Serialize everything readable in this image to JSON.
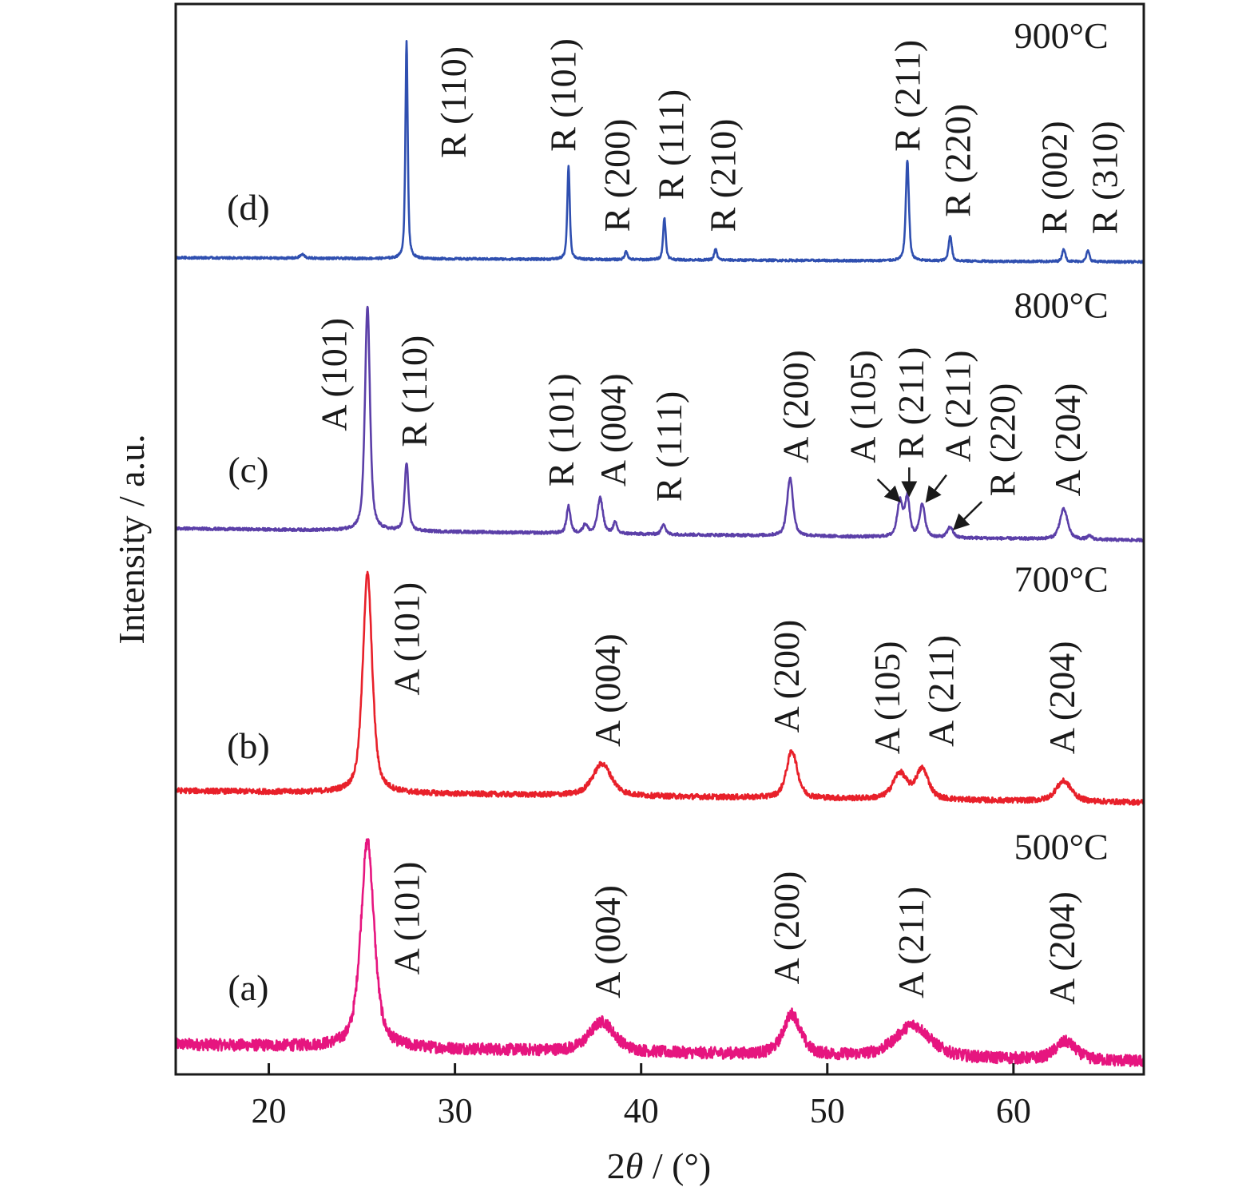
{
  "chart_data": {
    "type": "line",
    "title": "",
    "xlabel": "2θ / (°)",
    "xlabel_parts": {
      "prefix": "2",
      "symbol": "θ",
      "suffix": " / (°)"
    },
    "ylabel": "Intensity / a.u.",
    "xlim": [
      15,
      67
    ],
    "ylim": [
      0,
      100
    ],
    "xticks": [
      20,
      30,
      40,
      50,
      60
    ],
    "xtick_labels": [
      "20",
      "30",
      "40",
      "50",
      "60"
    ],
    "grid": false,
    "series": [
      {
        "name": "(a)",
        "temperature": "500°C",
        "color": "#e6157f",
        "baseline": [
          2.8,
          1.2
        ],
        "noise": 0.55,
        "label_pos": [
          18.9,
          8.1
        ],
        "temp_pos": [
          65.1,
          20.1
        ],
        "peaks": [
          [
            25.3,
            19.3,
            0.85
          ],
          [
            37.9,
            2.8,
            1.6
          ],
          [
            48.1,
            3.8,
            1.1
          ],
          [
            54.6,
            3.0,
            2.2
          ],
          [
            62.8,
            1.7,
            1.3
          ]
        ],
        "annotations": [
          {
            "text": "A (101)",
            "x": 27.4,
            "y": 9.3
          },
          {
            "text": "A (004)",
            "x": 38.2,
            "y": 7.1
          },
          {
            "text": "A (200)",
            "x": 47.8,
            "y": 8.4
          },
          {
            "text": "A (211)",
            "x": 54.5,
            "y": 7.1
          },
          {
            "text": "A (204)",
            "x": 62.6,
            "y": 6.5
          }
        ]
      },
      {
        "name": "(b)",
        "temperature": "700°C",
        "color": "#e8202a",
        "baseline": [
          26.5,
          25.4
        ],
        "noise": 0.25,
        "label_pos": [
          18.9,
          30.7
        ],
        "temp_pos": [
          65.1,
          45.1
        ],
        "peaks": [
          [
            25.3,
            20.5,
            0.6
          ],
          [
            37.9,
            3.0,
            1.2
          ],
          [
            48.1,
            4.4,
            0.7
          ],
          [
            53.9,
            2.4,
            0.9
          ],
          [
            55.1,
            2.8,
            0.8
          ],
          [
            62.7,
            1.9,
            1.0
          ]
        ],
        "annotations": [
          {
            "text": "A (101)",
            "x": 27.4,
            "y": 35.4
          },
          {
            "text": "A (004)",
            "x": 38.2,
            "y": 30.6
          },
          {
            "text": "A (200)",
            "x": 47.8,
            "y": 31.9
          },
          {
            "text": "A (105)",
            "x": 53.2,
            "y": 29.9
          },
          {
            "text": "A (211)",
            "x": 56.1,
            "y": 30.6
          },
          {
            "text": "A (204)",
            "x": 62.6,
            "y": 29.9
          }
        ]
      },
      {
        "name": "(c)",
        "temperature": "800°C",
        "color": "#5b3fa8",
        "baseline": [
          51.0,
          49.9
        ],
        "noise": 0.13,
        "label_pos": [
          18.9,
          56.5
        ],
        "temp_pos": [
          65.1,
          70.7
        ],
        "peaks": [
          [
            25.3,
            21.0,
            0.32
          ],
          [
            27.4,
            6.3,
            0.25
          ],
          [
            36.1,
            2.5,
            0.25
          ],
          [
            37.0,
            0.8,
            0.3
          ],
          [
            37.8,
            3.3,
            0.35
          ],
          [
            38.6,
            1.0,
            0.25
          ],
          [
            41.2,
            1.0,
            0.25
          ],
          [
            48.0,
            5.4,
            0.38
          ],
          [
            53.9,
            3.3,
            0.35
          ],
          [
            54.3,
            3.6,
            0.3
          ],
          [
            55.1,
            3.0,
            0.35
          ],
          [
            56.6,
            1.0,
            0.35
          ],
          [
            62.7,
            2.8,
            0.5
          ],
          [
            64.1,
            0.3,
            0.3
          ]
        ],
        "annotations": [
          {
            "text": "A (101)",
            "x": 23.5,
            "y": 60.1
          },
          {
            "text": "R (110)",
            "x": 27.8,
            "y": 58.6
          },
          {
            "text": "R (101)",
            "x": 35.7,
            "y": 54.9
          },
          {
            "text": "A (004)",
            "x": 38.5,
            "y": 54.9
          },
          {
            "text": "R (111)",
            "x": 41.5,
            "y": 53.5
          },
          {
            "text": "A (200)",
            "x": 48.3,
            "y": 57.1
          },
          {
            "text": "A (105)",
            "x": 51.9,
            "y": 57.1
          },
          {
            "text": "R (211)",
            "x": 54.5,
            "y": 57.5
          },
          {
            "text": "A (211)",
            "x": 57.0,
            "y": 57.2
          },
          {
            "text": "R (220)",
            "x": 59.4,
            "y": 54.0
          },
          {
            "text": "A (204)",
            "x": 62.9,
            "y": 54.0
          }
        ],
        "arrows": [
          {
            "from": [
              52.7,
              55.6
            ],
            "to": [
              53.8,
              53.7
            ]
          },
          {
            "from": [
              54.4,
              56.7
            ],
            "to": [
              54.4,
              54.3
            ]
          },
          {
            "from": [
              56.4,
              56.0
            ],
            "to": [
              55.4,
              53.7
            ]
          },
          {
            "from": [
              58.3,
              53.5
            ],
            "to": [
              56.9,
              51.1
            ]
          }
        ]
      },
      {
        "name": "(d)",
        "temperature": "900°C",
        "color": "#2f4fb0",
        "baseline": [
          76.3,
          75.9
        ],
        "noise": 0.1,
        "label_pos": [
          18.9,
          81.0
        ],
        "temp_pos": [
          65.1,
          95.9
        ],
        "peaks": [
          [
            21.8,
            0.35,
            0.3
          ],
          [
            27.4,
            20.3,
            0.15
          ],
          [
            36.1,
            8.7,
            0.16
          ],
          [
            39.2,
            0.8,
            0.18
          ],
          [
            41.25,
            3.9,
            0.17
          ],
          [
            44.0,
            1.0,
            0.18
          ],
          [
            54.3,
            9.4,
            0.2
          ],
          [
            56.6,
            2.4,
            0.2
          ],
          [
            62.7,
            1.2,
            0.2
          ],
          [
            64.0,
            1.0,
            0.2
          ]
        ],
        "annotations": [
          {
            "text": "R (110)",
            "x": 29.9,
            "y": 85.6
          },
          {
            "text": "R (101)",
            "x": 35.8,
            "y": 86.2
          },
          {
            "text": "R (200)",
            "x": 38.7,
            "y": 78.7
          },
          {
            "text": "R (111)",
            "x": 41.6,
            "y": 81.7
          },
          {
            "text": "R (210)",
            "x": 44.4,
            "y": 78.7
          },
          {
            "text": "R (211)",
            "x": 54.3,
            "y": 86.2
          },
          {
            "text": "R (220)",
            "x": 57.0,
            "y": 80.1
          },
          {
            "text": "R (002)",
            "x": 62.2,
            "y": 78.5
          },
          {
            "text": "R (310)",
            "x": 64.9,
            "y": 78.5
          }
        ]
      }
    ]
  }
}
